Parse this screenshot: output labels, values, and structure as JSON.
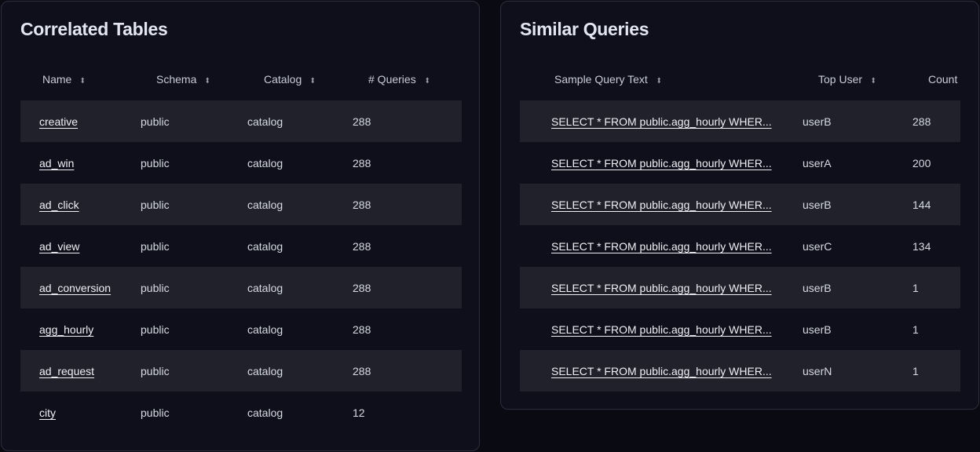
{
  "correlated_tables": {
    "title": "Correlated Tables",
    "columns": [
      "Name",
      "Schema",
      "Catalog",
      "# Queries"
    ],
    "rows": [
      {
        "name": "creative",
        "schema": "public",
        "catalog": "catalog",
        "queries": "288"
      },
      {
        "name": "ad_win",
        "schema": "public",
        "catalog": "catalog",
        "queries": "288"
      },
      {
        "name": "ad_click",
        "schema": "public",
        "catalog": "catalog",
        "queries": "288"
      },
      {
        "name": "ad_view",
        "schema": "public",
        "catalog": "catalog",
        "queries": "288"
      },
      {
        "name": "ad_conversion",
        "schema": "public",
        "catalog": "catalog",
        "queries": "288"
      },
      {
        "name": "agg_hourly",
        "schema": "public",
        "catalog": "catalog",
        "queries": "288"
      },
      {
        "name": "ad_request",
        "schema": "public",
        "catalog": "catalog",
        "queries": "288"
      },
      {
        "name": "city",
        "schema": "public",
        "catalog": "catalog",
        "queries": "12"
      }
    ]
  },
  "similar_queries": {
    "title": "Similar Queries",
    "columns": [
      "Sample Query Text",
      "Top User",
      "Count"
    ],
    "rows": [
      {
        "query": "SELECT * FROM public.agg_hourly WHER...",
        "user": "userB",
        "count": "288"
      },
      {
        "query": "SELECT * FROM public.agg_hourly WHER...",
        "user": "userA",
        "count": "200"
      },
      {
        "query": "SELECT * FROM public.agg_hourly WHER...",
        "user": "userB",
        "count": "144"
      },
      {
        "query": "SELECT * FROM public.agg_hourly WHER...",
        "user": "userC",
        "count": "134"
      },
      {
        "query": "SELECT * FROM public.agg_hourly WHER...",
        "user": "userB",
        "count": "1"
      },
      {
        "query": "SELECT * FROM public.agg_hourly WHER...",
        "user": "userB",
        "count": "1"
      },
      {
        "query": "SELECT * FROM public.agg_hourly WHER...",
        "user": "userN",
        "count": "1"
      }
    ]
  }
}
